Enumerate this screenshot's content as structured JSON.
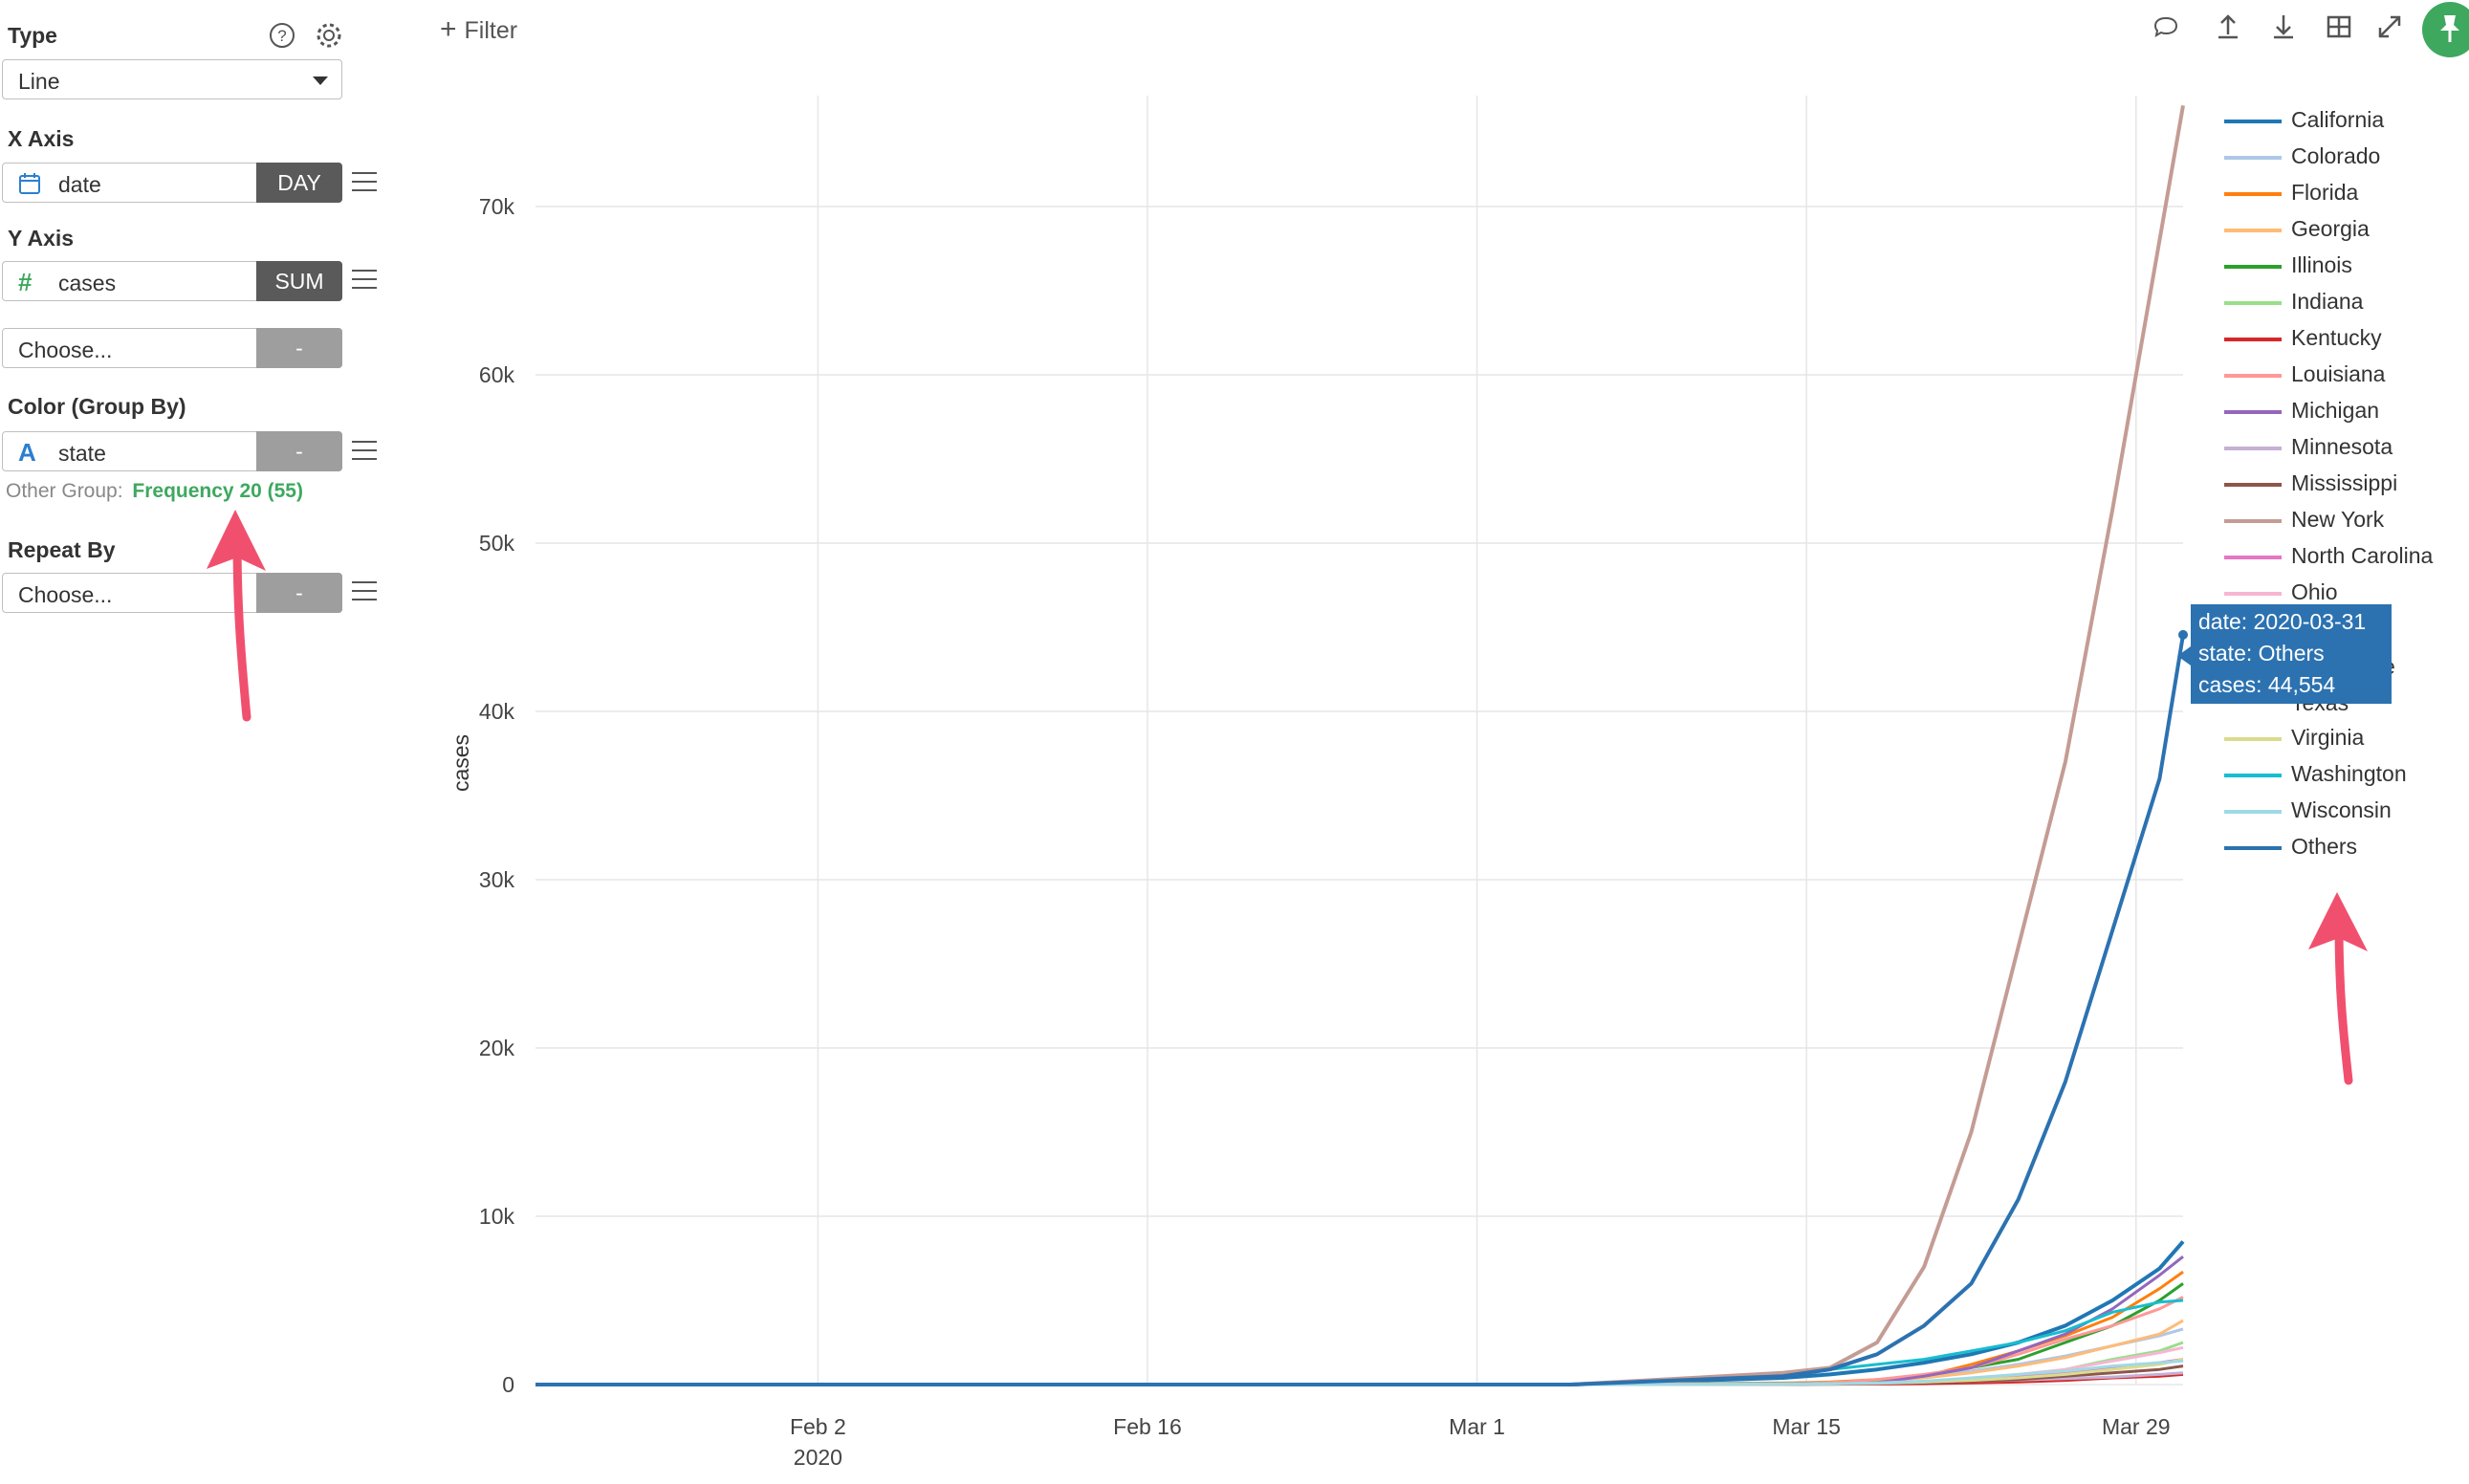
{
  "sidebar": {
    "type_label": "Type",
    "type_value": "Line",
    "x_axis_label": "X Axis",
    "x_axis_field": "date",
    "x_axis_agg": "DAY",
    "y_axis_label": "Y Axis",
    "y_axis_field": "cases",
    "y_axis_agg": "SUM",
    "y2_placeholder": "Choose...",
    "y2_agg": "-",
    "color_label": "Color (Group By)",
    "color_field": "state",
    "color_agg": "-",
    "other_group_label": "Other Group:",
    "other_group_value": "Frequency 20 (55)",
    "repeat_label": "Repeat By",
    "repeat_placeholder": "Choose...",
    "repeat_agg": "-"
  },
  "toolbar": {
    "filter_label": "Filter",
    "icons": [
      "comment-icon",
      "upload-icon",
      "download-icon",
      "grid-icon",
      "expand-icon",
      "pin-icon"
    ]
  },
  "tooltip": {
    "line1": "date: 2020-03-31",
    "line2": "state: Others",
    "line3": "cases: 44,554"
  },
  "colors": {
    "pin": "#3ea85f",
    "accent_green": "#3ea85f",
    "tooltip": "#2c72b1",
    "annotation_arrow": "#f0506e"
  },
  "chart_data": {
    "type": "line",
    "xlabel": "",
    "ylabel": "cases",
    "x_ticks": [
      "Feb 2",
      "Feb 16",
      "Mar 1",
      "Mar 15",
      "Mar 29"
    ],
    "x_tick_year": "2020",
    "y_ticks": [
      "0",
      "10k",
      "20k",
      "30k",
      "40k",
      "50k",
      "60k",
      "70k"
    ],
    "xlim": [
      "2020-01-21",
      "2020-03-31"
    ],
    "ylim": [
      0,
      75000
    ],
    "grid": true,
    "legend_placement": "right",
    "x": [
      "2020-03-14",
      "2020-03-16",
      "2020-03-18",
      "2020-03-20",
      "2020-03-22",
      "2020-03-24",
      "2020-03-26",
      "2020-03-28",
      "2020-03-30",
      "2020-03-31"
    ],
    "series": [
      {
        "name": "California",
        "color": "#1f77b4",
        "values": [
          400,
          600,
          900,
          1300,
          1800,
          2500,
          3500,
          5000,
          6900,
          8500
        ]
      },
      {
        "name": "Colorado",
        "color": "#aec7e8",
        "values": [
          100,
          150,
          250,
          500,
          800,
          1200,
          1700,
          2300,
          2900,
          3300
        ]
      },
      {
        "name": "Florida",
        "color": "#ff7f0e",
        "values": [
          80,
          150,
          300,
          500,
          1200,
          2000,
          2900,
          4000,
          5700,
          6700
        ]
      },
      {
        "name": "Georgia",
        "color": "#ffbb78",
        "values": [
          60,
          120,
          200,
          400,
          700,
          1100,
          1600,
          2300,
          3000,
          3800
        ]
      },
      {
        "name": "Illinois",
        "color": "#2ca02c",
        "values": [
          60,
          100,
          250,
          500,
          1000,
          1500,
          2500,
          3500,
          5000,
          6000
        ]
      },
      {
        "name": "Indiana",
        "color": "#98df8a",
        "values": [
          20,
          30,
          60,
          100,
          300,
          500,
          900,
          1500,
          2000,
          2500
        ]
      },
      {
        "name": "Kentucky",
        "color": "#d62728",
        "values": [
          10,
          20,
          30,
          50,
          100,
          160,
          250,
          400,
          500,
          600
        ]
      },
      {
        "name": "Louisiana",
        "color": "#ff9896",
        "values": [
          50,
          100,
          300,
          600,
          1000,
          1800,
          2700,
          3500,
          4500,
          5200
        ]
      },
      {
        "name": "Michigan",
        "color": "#9467bd",
        "values": [
          20,
          50,
          100,
          500,
          1000,
          2000,
          3000,
          4500,
          6500,
          7600
        ]
      },
      {
        "name": "Minnesota",
        "color": "#c5b0d5",
        "values": [
          20,
          50,
          80,
          120,
          200,
          270,
          350,
          450,
          600,
          700
        ]
      },
      {
        "name": "Mississippi",
        "color": "#8c564b",
        "values": [
          10,
          20,
          50,
          100,
          200,
          300,
          500,
          700,
          900,
          1100
        ]
      },
      {
        "name": "New York",
        "color": "#c49c94",
        "values": [
          700,
          1000,
          2500,
          7000,
          15000,
          26000,
          37000,
          52000,
          68000,
          76000
        ]
      },
      {
        "name": "North Carolina",
        "color": "#e377c2",
        "values": [
          20,
          40,
          60,
          150,
          300,
          500,
          700,
          1000,
          1300,
          1500
        ]
      },
      {
        "name": "Ohio",
        "color": "#f7b6d2",
        "values": [
          20,
          40,
          90,
          200,
          350,
          600,
          900,
          1400,
          1900,
          2200
        ]
      },
      {
        "name": "Virginia",
        "color": "#dbdb8d",
        "values": [
          20,
          40,
          80,
          150,
          250,
          400,
          600,
          900,
          1200,
          1500
        ]
      },
      {
        "name": "Washington",
        "color": "#17becf",
        "values": [
          600,
          900,
          1200,
          1500,
          2000,
          2500,
          3200,
          4300,
          4900,
          5000
        ]
      },
      {
        "name": "Wisconsin",
        "color": "#9edae5",
        "values": [
          20,
          40,
          100,
          200,
          400,
          600,
          800,
          1100,
          1300,
          1400
        ]
      },
      {
        "name": "Others",
        "color": "#2c72b1",
        "values": [
          500,
          900,
          1800,
          3500,
          6000,
          11000,
          18000,
          27000,
          36000,
          44554
        ]
      }
    ],
    "legend_visible": [
      "California",
      "Colorado",
      "Florida",
      "Georgia",
      "Illinois",
      "Indiana",
      "Kentucky",
      "Louisiana",
      "Michigan",
      "Minnesota",
      "Mississippi",
      "New York",
      "North Carolina",
      "Ohio",
      "Virginia",
      "Washington",
      "Wisconsin",
      "Others"
    ],
    "legend_partial": [
      "nia",
      "e",
      "Texas"
    ]
  }
}
